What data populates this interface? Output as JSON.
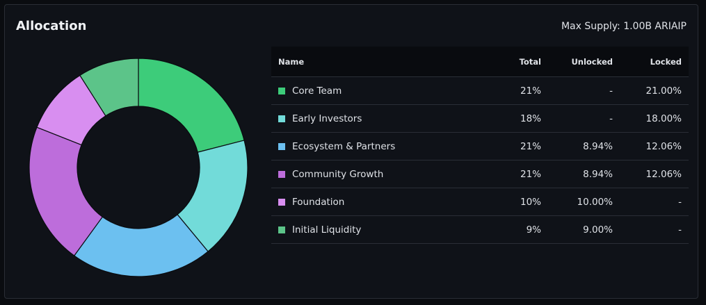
{
  "header": {
    "title": "Allocation",
    "max_supply": "Max Supply: 1.00B ARIAIP"
  },
  "table": {
    "columns": [
      "Name",
      "Total",
      "Unlocked",
      "Locked"
    ],
    "rows": [
      {
        "name": "Core Team",
        "total": "21%",
        "unlocked": "-",
        "locked": "21.00%",
        "color": "#3dcc7a"
      },
      {
        "name": "Early Investors",
        "total": "18%",
        "unlocked": "-",
        "locked": "18.00%",
        "color": "#72dbd9"
      },
      {
        "name": "Ecosystem & Partners",
        "total": "21%",
        "unlocked": "8.94%",
        "locked": "12.06%",
        "color": "#6cc0f0"
      },
      {
        "name": "Community Growth",
        "total": "21%",
        "unlocked": "8.94%",
        "locked": "12.06%",
        "color": "#bd6ddb"
      },
      {
        "name": "Foundation",
        "total": "10%",
        "unlocked": "10.00%",
        "locked": "-",
        "color": "#d88ef0"
      },
      {
        "name": "Initial Liquidity",
        "total": "9%",
        "unlocked": "9.00%",
        "locked": "-",
        "color": "#5cc489"
      }
    ]
  },
  "chart_data": {
    "type": "pie",
    "donut": true,
    "categories": [
      "Core Team",
      "Early Investors",
      "Ecosystem & Partners",
      "Community Growth",
      "Foundation",
      "Initial Liquidity"
    ],
    "values": [
      21,
      18,
      21,
      21,
      10,
      9
    ],
    "colors": [
      "#3dcc7a",
      "#72dbd9",
      "#6cc0f0",
      "#bd6ddb",
      "#d88ef0",
      "#5cc489"
    ]
  }
}
